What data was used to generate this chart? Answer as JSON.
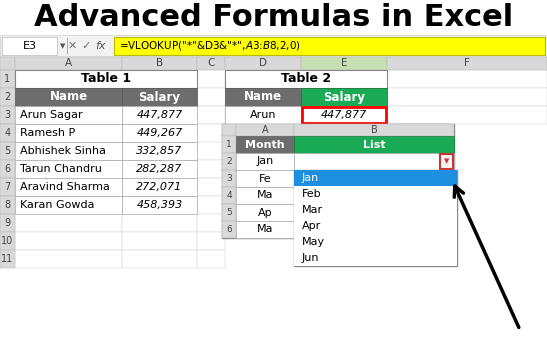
{
  "title": "Advanced Formulas in Excel",
  "title_fontsize": 22,
  "bg_color": "#ffffff",
  "formula_bar_text": "=VLOOKUP(\"*\"&D3&\"*\",$A$3:$B$8,2,0)",
  "cell_ref": "E3",
  "table1_header": "Table 1",
  "table1_col_headers": [
    "Name",
    "Salary"
  ],
  "table1_data": [
    [
      "Arun Sagar",
      "447,877"
    ],
    [
      "Ramesh P",
      "449,267"
    ],
    [
      "Abhishek Sinha",
      "332,857"
    ],
    [
      "Tarun Chandru",
      "282,287"
    ],
    [
      "Aravind Sharma",
      "272,071"
    ],
    [
      "Karan Gowda",
      "458,393"
    ]
  ],
  "table2_header": "Table 2",
  "table2_col_headers": [
    "Name",
    "Salary"
  ],
  "table2_data": [
    [
      "Arun",
      "447,877"
    ]
  ],
  "table3_col_headers": [
    "Month",
    "List"
  ],
  "table3_months": [
    "Jan",
    "Fe",
    "Ma",
    "Ap",
    "Ma"
  ],
  "dropdown_items": [
    "Jan",
    "Feb",
    "Mar",
    "Apr",
    "May",
    "Jun"
  ],
  "header_bg": "#6d6d6d",
  "header_fg": "#ffffff",
  "green_bg": "#1aaa55",
  "green_fg": "#ffffff",
  "dropdown_selected_bg": "#1e8fe0",
  "dropdown_selected_fg": "#ffffff",
  "col_header_bg": "#d9d9d9",
  "row_num_bg": "#d9d9d9",
  "toolbar_bg": "#f2f2f2",
  "cell_border": "#b0b0b0",
  "E_col_header_bg": "#c6e0b4"
}
